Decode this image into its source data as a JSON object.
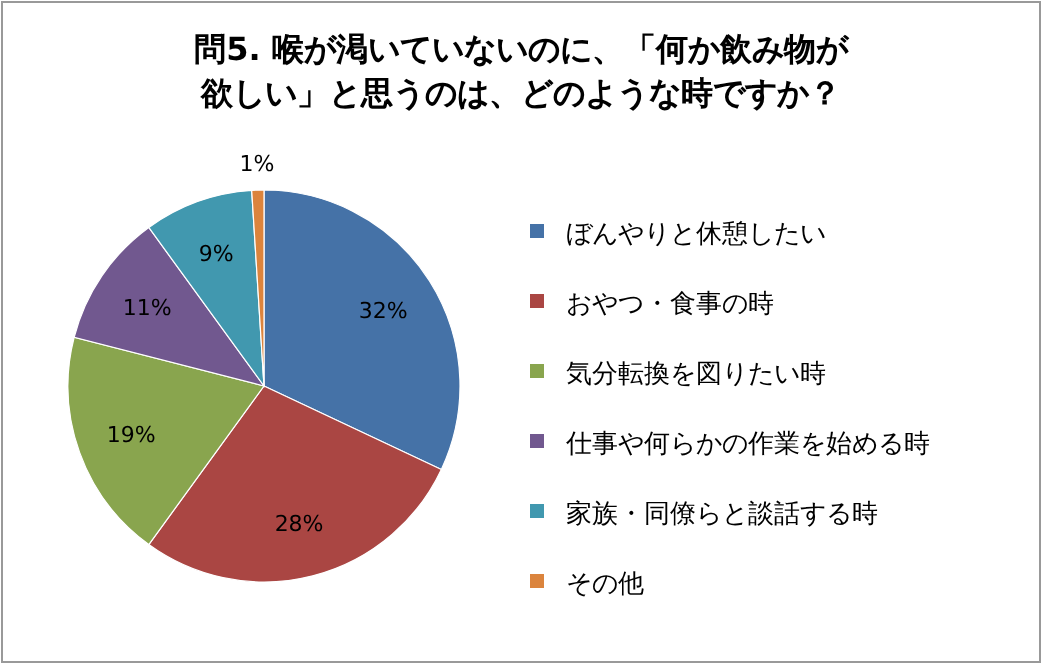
{
  "chart_data": {
    "type": "pie",
    "title": "問5. 喉が渇いていないのに、「何か飲み物が欲しい」と思うのは、どのような時ですか？",
    "categories": [
      "ぼんやりと休憩したい",
      "おやつ・食事の時",
      "気分転換を図りたい時",
      "仕事や何らかの作業を始める時",
      "家族・同僚らと談話する時",
      "その他"
    ],
    "values": [
      32,
      28,
      19,
      11,
      9,
      1
    ],
    "colors": [
      "#4572a7",
      "#aa4643",
      "#89a54e",
      "#71588f",
      "#4198af",
      "#db843d"
    ],
    "value_labels": [
      "32%",
      "28%",
      "19%",
      "11%",
      "9%",
      "1%"
    ],
    "legend": "right"
  }
}
